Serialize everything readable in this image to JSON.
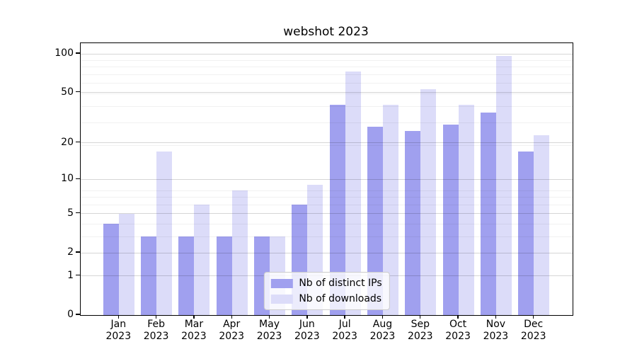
{
  "chart_data": {
    "type": "bar",
    "title": "webshot 2023",
    "categories": [
      "Jan 2023",
      "Feb 2023",
      "Mar 2023",
      "Apr 2023",
      "May 2023",
      "Jun 2023",
      "Jul 2023",
      "Aug 2023",
      "Sep 2023",
      "Oct 2023",
      "Nov 2023",
      "Dec 2023"
    ],
    "series": [
      {
        "name": "Nb of distinct IPs",
        "color": "#a0a0ef",
        "values": [
          4,
          3,
          3,
          3,
          3,
          6,
          40,
          27,
          25,
          28,
          35,
          17
        ]
      },
      {
        "name": "Nb of downloads",
        "color": "#dcdcf9",
        "values": [
          5,
          17,
          6,
          8,
          3,
          9,
          73,
          40,
          53,
          40,
          97,
          23
        ]
      }
    ],
    "yscale": "log1p",
    "yticks": [
      0,
      1,
      2,
      5,
      10,
      20,
      50,
      100
    ],
    "ylim": [
      0,
      121
    ],
    "xlabel": "",
    "ylabel": "",
    "grid": "horizontal-major-and-minor",
    "legend_position": "lower center",
    "colors": {
      "background": "#ffffff",
      "axis": "#000000",
      "grid_major": "#d9d9d9",
      "grid_minor": "#f0f0f0",
      "series_ips": "#a0a0ef",
      "series_downloads": "#dcdcf9"
    }
  }
}
